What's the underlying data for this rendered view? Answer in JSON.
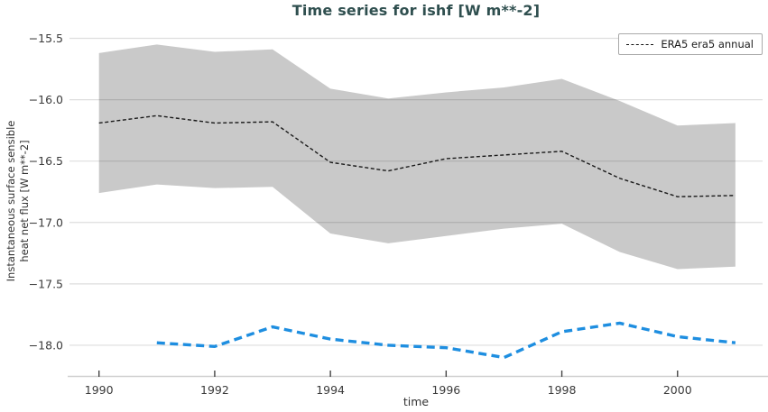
{
  "title": "Time series for ishf [W m**-2]",
  "axes": {
    "x_label": "time",
    "y_label_line1": "Instantaneous surface sensible",
    "y_label_line2": "heat net flux [W m**-2]"
  },
  "legend": {
    "position": "upper right",
    "entries": [
      {
        "label": "ERA5 era5 annual",
        "line_style": "black dashed"
      }
    ]
  },
  "colors": {
    "title_text": "#2f4f4f",
    "tick_text": "#3b3b3b",
    "band_fill": "#c9c9c9",
    "era5_line": "#1a1a1a",
    "blue_line": "#1e8ee0",
    "grid_line": "rgba(0,0,0,0.13)",
    "spine": "#cfcfcf",
    "tick_mark": "#444444"
  },
  "chart_data": {
    "type": "line",
    "title": "Time series for ishf [W m**-2]",
    "xlabel": "time",
    "ylabel": "Instantaneous surface sensible heat net flux [W m**-2]",
    "xlim": [
      1989.49,
      2001.47
    ],
    "ylim": [
      -18.25,
      -15.43
    ],
    "grid": "horizontal",
    "legend_position": "upper right",
    "x_ticks": {
      "values": [
        1990,
        1992,
        1994,
        1996,
        1998,
        2000
      ],
      "labels": [
        "1990",
        "1992",
        "1994",
        "1996",
        "1998",
        "2000"
      ]
    },
    "y_ticks": {
      "values": [
        -15.5,
        -16.0,
        -16.5,
        -17.0,
        -17.5,
        -18.0
      ],
      "labels": [
        "−15.5",
        "−16.0",
        "−16.5",
        "−17.0",
        "−17.5",
        "−18.0"
      ]
    },
    "series": [
      {
        "name": "ERA5 era5 annual uncertainty band",
        "style": "band",
        "color": "#c9c9c9",
        "x": [
          1990,
          1991,
          1992,
          1993,
          1994,
          1995,
          1996,
          1997,
          1998,
          1999,
          2000,
          2001
        ],
        "y_upper": [
          -15.62,
          -15.55,
          -15.61,
          -15.59,
          -15.91,
          -15.99,
          -15.94,
          -15.9,
          -15.83,
          -16.01,
          -16.21,
          -16.19
        ],
        "y_lower": [
          -16.76,
          -16.69,
          -16.72,
          -16.71,
          -17.09,
          -17.17,
          -17.11,
          -17.05,
          -17.01,
          -17.24,
          -17.38,
          -17.36
        ]
      },
      {
        "name": "ERA5 era5 annual",
        "style": "dashed",
        "color": "#1a1a1a",
        "stroke_width": 1.4,
        "dash": "4 2.6",
        "x": [
          1990,
          1991,
          1992,
          1993,
          1994,
          1995,
          1996,
          1997,
          1998,
          1999,
          2000,
          2001
        ],
        "y": [
          -16.19,
          -16.13,
          -16.19,
          -16.18,
          -16.51,
          -16.58,
          -16.48,
          -16.45,
          -16.42,
          -16.64,
          -16.79,
          -16.78
        ]
      },
      {
        "name": "blue dashed series (no legend entry)",
        "style": "dashed",
        "color": "#1e8ee0",
        "stroke_width": 3.4,
        "dash": "9 5.5",
        "x": [
          1991,
          1992,
          1993,
          1994,
          1995,
          1996,
          1997,
          1998,
          1999,
          2000,
          2001
        ],
        "y": [
          -17.98,
          -18.01,
          -17.85,
          -17.95,
          -18.0,
          -18.02,
          -18.1,
          -17.89,
          -17.82,
          -17.93,
          -17.98
        ]
      }
    ]
  }
}
